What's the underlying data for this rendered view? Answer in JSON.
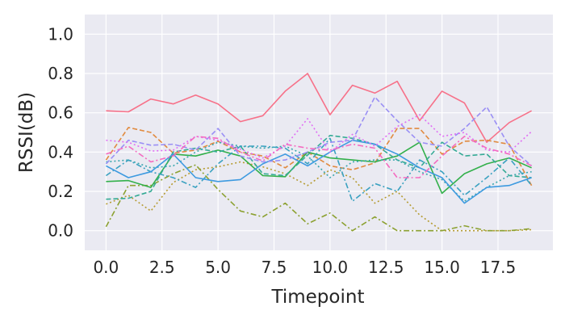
{
  "chart_data": {
    "type": "line",
    "xlabel": "Timepoint",
    "ylabel": "RSSI(dB)",
    "xlim": [
      -0.95,
      19.95
    ],
    "ylim": [
      -0.1,
      1.1
    ],
    "xticks": [
      0,
      2.5,
      5,
      7.5,
      10,
      12.5,
      15,
      17.5
    ],
    "xtick_labels": [
      "0.0",
      "2.5",
      "5.0",
      "7.5",
      "10.0",
      "12.5",
      "15.0",
      "17.5"
    ],
    "yticks": [
      0,
      0.2,
      0.4,
      0.6,
      0.8,
      1.0
    ],
    "ytick_labels": [
      "0.0",
      "0.2",
      "0.4",
      "0.6",
      "0.8",
      "1.0"
    ],
    "grid": true,
    "background": "#eaeaf2",
    "x": [
      0,
      1,
      2,
      3,
      4,
      5,
      6,
      7,
      8,
      9,
      10,
      11,
      12,
      13,
      14,
      15,
      16,
      17,
      18,
      19
    ],
    "series": [
      {
        "color": "#f77189",
        "dash": "solid",
        "values": [
          0.61,
          0.605,
          0.67,
          0.645,
          0.69,
          0.645,
          0.555,
          0.585,
          0.71,
          0.8,
          0.59,
          0.74,
          0.7,
          0.76,
          0.56,
          0.71,
          0.65,
          0.45,
          0.55,
          0.61
        ]
      },
      {
        "color": "#e18a3f",
        "dash": "dashed",
        "values": [
          0.36,
          0.525,
          0.5,
          0.395,
          0.41,
          0.455,
          0.4,
          0.38,
          0.32,
          0.4,
          0.33,
          0.31,
          0.345,
          0.52,
          0.52,
          0.39,
          0.455,
          0.46,
          0.44,
          0.23
        ]
      },
      {
        "color": "#b59b31",
        "dash": "dotted",
        "values": [
          0.135,
          0.18,
          0.1,
          0.245,
          0.31,
          0.325,
          0.35,
          0.325,
          0.29,
          0.23,
          0.31,
          0.27,
          0.14,
          0.2,
          0.08,
          0.0,
          0.0,
          0.0,
          0.0,
          0.005
        ]
      },
      {
        "color": "#8ca131",
        "dash": "dashdot",
        "values": [
          0.02,
          0.23,
          0.23,
          0.29,
          0.335,
          0.21,
          0.1,
          0.07,
          0.14,
          0.035,
          0.09,
          0.0,
          0.07,
          0.0,
          0.0,
          0.0,
          0.025,
          0.0,
          0.0,
          0.01
        ]
      },
      {
        "color": "#33b04b",
        "dash": "solid",
        "values": [
          0.25,
          0.255,
          0.22,
          0.39,
          0.38,
          0.41,
          0.38,
          0.28,
          0.275,
          0.4,
          0.37,
          0.36,
          0.35,
          0.38,
          0.45,
          0.19,
          0.29,
          0.34,
          0.37,
          0.32
        ]
      },
      {
        "color": "#35ab95",
        "dash": "dashed",
        "values": [
          0.16,
          0.165,
          0.2,
          0.4,
          0.42,
          0.4,
          0.43,
          0.29,
          0.28,
          0.385,
          0.485,
          0.47,
          0.44,
          0.36,
          0.32,
          0.45,
          0.38,
          0.39,
          0.28,
          0.27
        ]
      },
      {
        "color": "#38a6ad",
        "dash": "dotted",
        "values": [
          0.35,
          0.36,
          0.32,
          0.33,
          0.4,
          0.45,
          0.43,
          0.42,
          0.43,
          0.38,
          0.27,
          0.35,
          0.36,
          0.36,
          0.3,
          0.26,
          0.15,
          0.22,
          0.28,
          0.3
        ]
      },
      {
        "color": "#3aa1c0",
        "dash": "dashdot",
        "values": [
          0.28,
          0.36,
          0.3,
          0.27,
          0.22,
          0.34,
          0.43,
          0.43,
          0.42,
          0.34,
          0.47,
          0.15,
          0.24,
          0.2,
          0.36,
          0.3,
          0.18,
          0.27,
          0.37,
          0.23
        ]
      },
      {
        "color": "#3d9ae0",
        "dash": "solid",
        "values": [
          0.33,
          0.27,
          0.3,
          0.39,
          0.27,
          0.25,
          0.26,
          0.34,
          0.39,
          0.33,
          0.4,
          0.46,
          0.44,
          0.39,
          0.32,
          0.27,
          0.14,
          0.22,
          0.23,
          0.27
        ]
      },
      {
        "color": "#9a8ff5",
        "dash": "dashed",
        "values": [
          0.34,
          0.46,
          0.435,
          0.44,
          0.41,
          0.52,
          0.38,
          0.35,
          0.36,
          0.4,
          0.45,
          0.46,
          0.68,
          0.56,
          0.45,
          0.43,
          0.52,
          0.63,
          0.43,
          0.33
        ]
      },
      {
        "color": "#e06ef4",
        "dash": "dotted",
        "values": [
          0.46,
          0.45,
          0.405,
          0.41,
          0.48,
          0.46,
          0.415,
          0.37,
          0.43,
          0.57,
          0.4,
          0.49,
          0.43,
          0.53,
          0.59,
          0.48,
          0.5,
          0.41,
          0.4,
          0.505
        ]
      },
      {
        "color": "#f46bc0",
        "dash": "dashdot",
        "values": [
          0.39,
          0.43,
          0.35,
          0.38,
          0.48,
          0.47,
          0.4,
          0.355,
          0.44,
          0.42,
          0.41,
          0.44,
          0.42,
          0.27,
          0.27,
          0.38,
          0.48,
          0.42,
          0.39,
          0.33
        ]
      }
    ]
  }
}
